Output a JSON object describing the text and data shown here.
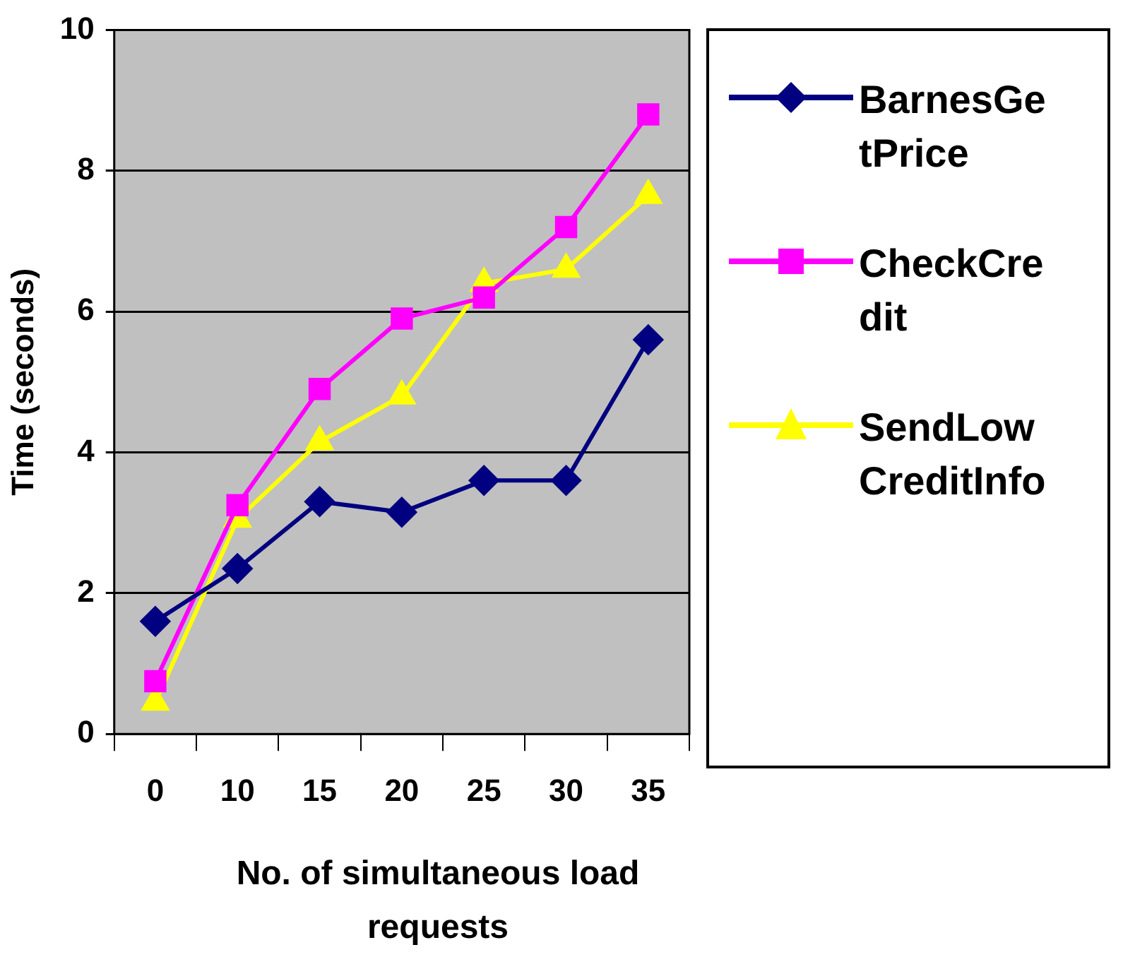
{
  "chart_data": {
    "type": "line",
    "ylabel": "Time (seconds)",
    "xlabel": "No. of simultaneous load requests",
    "categories": [
      "0",
      "10",
      "15",
      "20",
      "25",
      "30",
      "35"
    ],
    "series": [
      {
        "name": "BarnesGetPrice",
        "color": "#000080",
        "marker": "diamond",
        "values": [
          1.6,
          2.35,
          3.3,
          3.15,
          3.6,
          3.6,
          5.6
        ]
      },
      {
        "name": "CheckCredit",
        "color": "#ff00ff",
        "marker": "square",
        "values": [
          0.75,
          3.25,
          4.9,
          5.9,
          6.2,
          7.2,
          8.8
        ]
      },
      {
        "name": "SendLowCreditInfo",
        "color": "#ffff00",
        "marker": "triangle",
        "values": [
          0.45,
          3.05,
          4.15,
          4.8,
          6.4,
          6.6,
          7.65
        ]
      }
    ],
    "ylim": [
      0,
      10
    ],
    "yticks": [
      0,
      2,
      4,
      6,
      8,
      10
    ],
    "grid": "y",
    "legend": "right",
    "line_style": "solid"
  }
}
